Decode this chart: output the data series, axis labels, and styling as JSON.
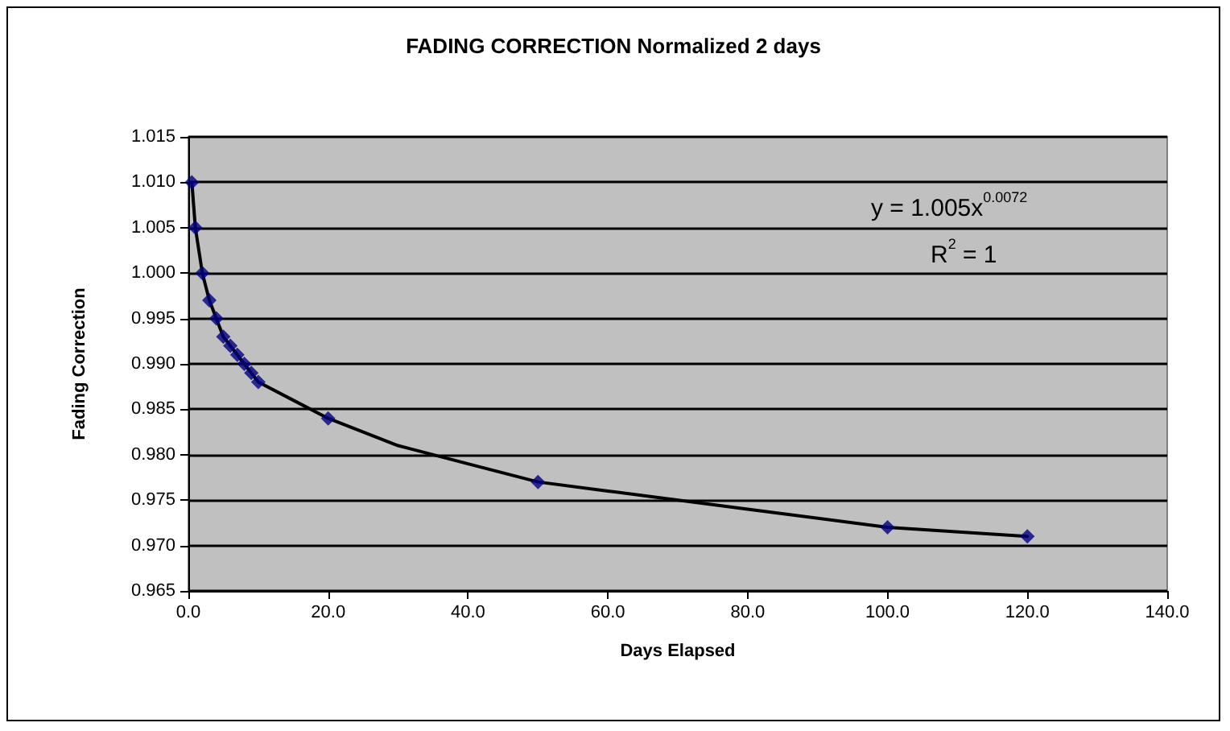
{
  "chart_data": {
    "type": "scatter",
    "title": "FADING CORRECTION Normalized 2 days",
    "xlabel": "Days Elapsed",
    "ylabel": "Fading Correction",
    "series": [
      {
        "type": "scatter",
        "color": "#000080",
        "marker": "diamond",
        "x": [
          0.5,
          1,
          2,
          3,
          4,
          5,
          6,
          7,
          8,
          9,
          10,
          20,
          50,
          100,
          120
        ],
        "values": [
          1.01,
          1.005,
          1.0,
          0.997,
          0.995,
          0.993,
          0.992,
          0.991,
          0.99,
          0.989,
          0.988,
          0.984,
          0.977,
          0.972,
          0.971
        ]
      },
      {
        "type": "line",
        "color": "#000000",
        "marker": "none",
        "line_style": "solid",
        "x": [
          0.5,
          1,
          2,
          3,
          5,
          7,
          10,
          15,
          20,
          30,
          40,
          50,
          60,
          80,
          100,
          120
        ],
        "values": [
          1.01,
          1.005,
          1.0,
          0.997,
          0.993,
          0.991,
          0.988,
          0.986,
          0.984,
          0.981,
          0.979,
          0.977,
          0.976,
          0.974,
          0.972,
          0.971
        ]
      }
    ],
    "xlim": [
      0,
      140
    ],
    "xticks": [
      {
        "value": 0,
        "label": "0.0"
      },
      {
        "value": 20,
        "label": "20.0"
      },
      {
        "value": 40,
        "label": "40.0"
      },
      {
        "value": 60,
        "label": "60.0"
      },
      {
        "value": 80,
        "label": "80.0"
      },
      {
        "value": 100,
        "label": "100.0"
      },
      {
        "value": 120,
        "label": "120.0"
      },
      {
        "value": 140,
        "label": "140.0"
      }
    ],
    "ylim": [
      0.965,
      1.015
    ],
    "yticks": [
      {
        "value": 0.965,
        "label": "0.965"
      },
      {
        "value": 0.97,
        "label": "0.970"
      },
      {
        "value": 0.975,
        "label": "0.975"
      },
      {
        "value": 0.98,
        "label": "0.980"
      },
      {
        "value": 0.985,
        "label": "0.985"
      },
      {
        "value": 0.99,
        "label": "0.990"
      },
      {
        "value": 0.995,
        "label": "0.995"
      },
      {
        "value": 1.0,
        "label": "1.000"
      },
      {
        "value": 1.005,
        "label": "1.005"
      },
      {
        "value": 1.01,
        "label": "1.010"
      },
      {
        "value": 1.015,
        "label": "1.015"
      }
    ],
    "grid": "y",
    "annotations": [
      "y = 1.005x$^{0.0072}$",
      "R$^{2}$ = 1"
    ]
  }
}
